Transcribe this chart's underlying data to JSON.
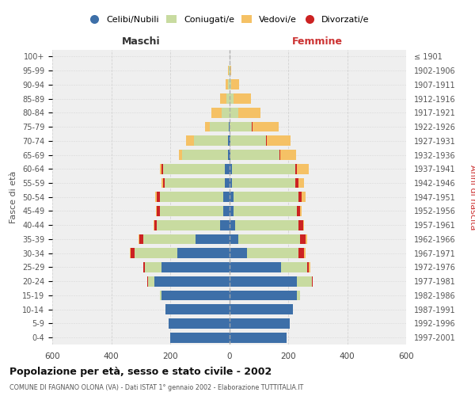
{
  "age_groups": [
    "0-4",
    "5-9",
    "10-14",
    "15-19",
    "20-24",
    "25-29",
    "30-34",
    "35-39",
    "40-44",
    "45-49",
    "50-54",
    "55-59",
    "60-64",
    "65-69",
    "70-74",
    "75-79",
    "80-84",
    "85-89",
    "90-94",
    "95-99",
    "100+"
  ],
  "birth_years": [
    "1997-2001",
    "1992-1996",
    "1987-1991",
    "1982-1986",
    "1977-1981",
    "1972-1976",
    "1967-1971",
    "1962-1966",
    "1957-1961",
    "1952-1956",
    "1947-1951",
    "1942-1946",
    "1937-1941",
    "1932-1936",
    "1927-1931",
    "1922-1926",
    "1917-1921",
    "1912-1916",
    "1907-1911",
    "1902-1906",
    "≤ 1901"
  ],
  "males": {
    "celibi": [
      200,
      205,
      215,
      230,
      255,
      230,
      175,
      115,
      30,
      20,
      20,
      15,
      15,
      5,
      5,
      2,
      0,
      0,
      0,
      0,
      0
    ],
    "coniugati": [
      0,
      0,
      0,
      5,
      20,
      55,
      145,
      175,
      215,
      215,
      215,
      205,
      210,
      155,
      115,
      65,
      25,
      10,
      5,
      2,
      0
    ],
    "vedovi": [
      0,
      0,
      0,
      0,
      2,
      2,
      2,
      2,
      2,
      2,
      5,
      5,
      5,
      10,
      25,
      15,
      35,
      20,
      8,
      3,
      0
    ],
    "divorziati": [
      0,
      0,
      0,
      0,
      2,
      5,
      15,
      15,
      10,
      10,
      10,
      5,
      5,
      0,
      0,
      0,
      0,
      0,
      0,
      0,
      0
    ]
  },
  "females": {
    "nubili": [
      195,
      205,
      215,
      230,
      230,
      175,
      60,
      30,
      20,
      15,
      15,
      10,
      10,
      5,
      5,
      2,
      0,
      0,
      0,
      0,
      0
    ],
    "coniugate": [
      0,
      0,
      0,
      10,
      50,
      90,
      175,
      210,
      215,
      215,
      220,
      215,
      215,
      165,
      120,
      75,
      30,
      15,
      8,
      3,
      0
    ],
    "vedove": [
      0,
      0,
      0,
      0,
      2,
      5,
      5,
      5,
      5,
      5,
      15,
      20,
      40,
      55,
      80,
      90,
      75,
      60,
      25,
      5,
      0
    ],
    "divorziate": [
      0,
      0,
      0,
      0,
      2,
      5,
      20,
      20,
      15,
      10,
      10,
      10,
      5,
      2,
      2,
      2,
      0,
      0,
      0,
      0,
      0
    ]
  },
  "color_celibi": "#3d6fa8",
  "color_coniugati": "#c8dba0",
  "color_vedovi": "#f5c165",
  "color_divorziati": "#cc2222",
  "title": "Popolazione per età, sesso e stato civile - 2002",
  "subtitle": "COMUNE DI FAGNANO OLONA (VA) - Dati ISTAT 1° gennaio 2002 - Elaborazione TUTTITALIA.IT",
  "label_maschi": "Maschi",
  "label_femmine": "Femmine",
  "ylabel_left": "Fasce di età",
  "ylabel_right": "Anni di nascita",
  "legend_labels": [
    "Celibi/Nubili",
    "Coniugati/e",
    "Vedovi/e",
    "Divorzati/e"
  ],
  "xmax": 600,
  "bg_color": "#ffffff",
  "plot_bg": "#efefef",
  "grid_color": "#d0d0d0"
}
